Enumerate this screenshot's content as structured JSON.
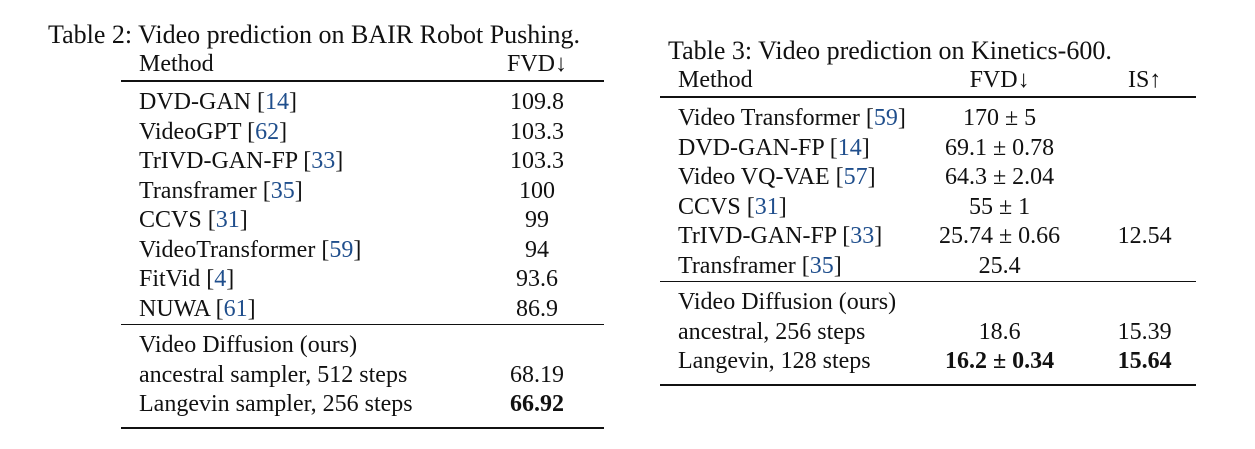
{
  "table2": {
    "caption": "Table 2: Video prediction on BAIR Robot Pushing.",
    "header": {
      "method": "Method",
      "fvd": "FVD↓"
    },
    "rows": [
      {
        "name": "DVD-GAN",
        "cite": "14",
        "fvd": "109.8"
      },
      {
        "name": "VideoGPT",
        "cite": "62",
        "fvd": "103.3"
      },
      {
        "name": "TrIVD-GAN-FP",
        "cite": "33",
        "fvd": "103.3"
      },
      {
        "name": "Transframer",
        "cite": "35",
        "fvd": "100"
      },
      {
        "name": "CCVS",
        "cite": "31",
        "fvd": "99"
      },
      {
        "name": "VideoTransformer",
        "cite": "59",
        "fvd": "94"
      },
      {
        "name": "FitVid",
        "cite": "4",
        "fvd": "93.6"
      },
      {
        "name": "NUWA",
        "cite": "61",
        "fvd": "86.9"
      }
    ],
    "ours_title": "Video Diffusion (ours)",
    "ours": [
      {
        "name": "ancestral sampler, 512 steps",
        "fvd": "68.19"
      },
      {
        "name": "Langevin sampler, 256 steps",
        "fvd": "66.92"
      }
    ]
  },
  "table3": {
    "caption": "Table 3: Video prediction on Kinetics-600.",
    "header": {
      "method": "Method",
      "fvd": "FVD↓",
      "is": "IS↑"
    },
    "rows": [
      {
        "name": "Video Transformer",
        "cite": "59",
        "fvd": "170 ± 5",
        "is": ""
      },
      {
        "name": "DVD-GAN-FP",
        "cite": "14",
        "fvd": "69.1 ± 0.78",
        "is": ""
      },
      {
        "name": "Video VQ-VAE",
        "cite": "57",
        "fvd": "64.3 ± 2.04",
        "is": ""
      },
      {
        "name": "CCVS",
        "cite": "31",
        "fvd": "55 ± 1",
        "is": ""
      },
      {
        "name": "TrIVD-GAN-FP",
        "cite": "33",
        "fvd": "25.74 ± 0.66",
        "is": "12.54"
      },
      {
        "name": "Transframer",
        "cite": "35",
        "fvd": "25.4",
        "is": ""
      }
    ],
    "ours_title": "Video Diffusion (ours)",
    "ours": [
      {
        "name": "ancestral, 256 steps",
        "fvd": "18.6",
        "is": "15.39"
      },
      {
        "name": "Langevin, 128 steps",
        "fvd": "16.2 ± 0.34",
        "is": "15.64"
      }
    ]
  }
}
